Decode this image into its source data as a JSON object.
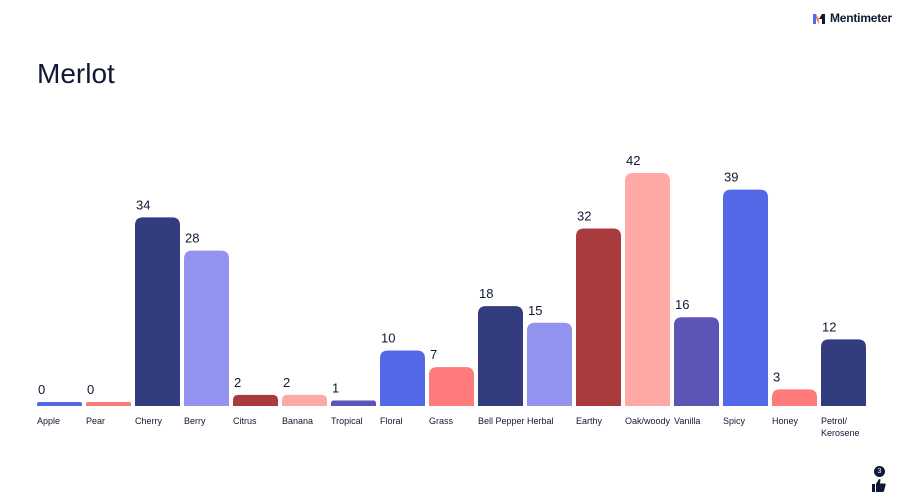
{
  "brand": {
    "name": "Mentimeter"
  },
  "reactions": {
    "count": "3",
    "icon": "thumbs-up-icon"
  },
  "chart_data": {
    "type": "bar",
    "title": "Merlot",
    "categories": [
      "Apple",
      "Pear",
      "Cherry",
      "Berry",
      "Citrus",
      "Banana",
      "Tropical",
      "Floral",
      "Grass",
      "Bell Pepper",
      "Herbal",
      "Earthy",
      "Oak/woody",
      "Vanilla",
      "Spicy",
      "Honey",
      "Petrol/ Kerosene"
    ],
    "values": [
      0,
      0,
      34,
      28,
      2,
      2,
      1,
      10,
      7,
      18,
      15,
      32,
      42,
      16,
      39,
      3,
      12
    ],
    "colors": [
      "#5469e8",
      "#ff7b7b",
      "#323c7e",
      "#9193ee",
      "#a93a3d",
      "#ffa9a7",
      "#5b55b5",
      "#5469e8",
      "#ff7b7b",
      "#323c7e",
      "#9193ee",
      "#a93a3d",
      "#ffa9a7",
      "#5b55b5",
      "#5469e8",
      "#ff7b7b",
      "#323c7e"
    ],
    "ylim": [
      0,
      42
    ],
    "grid": false,
    "legend": "none"
  }
}
